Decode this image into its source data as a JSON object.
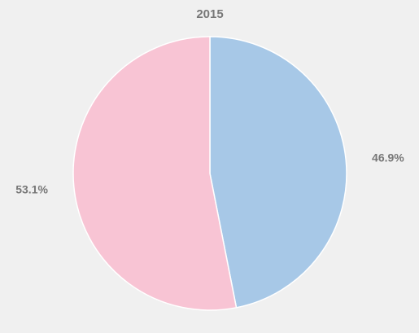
{
  "chart_data": {
    "type": "pie",
    "title": "2015",
    "slices": [
      {
        "label": "46.9%",
        "value": 46.9,
        "color": "#a7c8e7"
      },
      {
        "label": "53.1%",
        "value": 53.1,
        "color": "#f8c4d4"
      }
    ],
    "start_angle": "top",
    "direction": "clockwise",
    "edge_color": "#ffffff"
  }
}
